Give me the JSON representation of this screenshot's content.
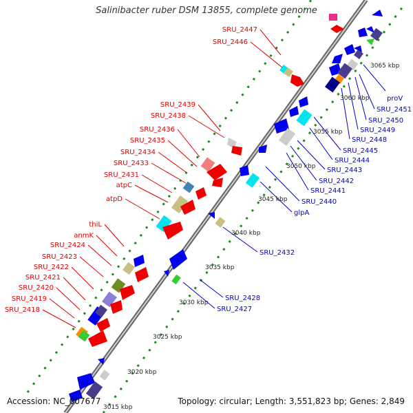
{
  "title": "Salinibacter ruber DSM 13855, complete genome",
  "accession": "Accession: NC_007677",
  "topology": "Topology: circular; Length: 3,551,823 bp; Genes: 2,849",
  "scale": {
    "unit": "kbp",
    "ticks": [
      "3015 kbp",
      "3020 kbp",
      "3025 kbp",
      "3030 kbp",
      "3035 kbp",
      "3040 kbp",
      "3045 kbp",
      "3050 kbp",
      "3055 kbp",
      "3060 kbp",
      "3065 kbp"
    ]
  },
  "labels_minus_strand": [
    "SRU_2447",
    "SRU_2446",
    "SRU_2439",
    "SRU_2438",
    "SRU_2436",
    "SRU_2435",
    "SRU_2434",
    "SRU_2433",
    "SRU_2431",
    "atpC",
    "atpD",
    "thiL",
    "anmK",
    "SRU_2424",
    "SRU_2423",
    "SRU_2422",
    "SRU_2421",
    "SRU_2420",
    "SRU_2419",
    "SRU_2418"
  ],
  "labels_plus_strand": [
    "proV",
    "SRU_2451",
    "SRU_2450",
    "SRU_2449",
    "SRU_2448",
    "SRU_2445",
    "SRU_2444",
    "SRU_2443",
    "SRU_2442",
    "SRU_2441",
    "SRU_2440",
    "glpA",
    "SRU_2432",
    "SRU_2428",
    "SRU_2427"
  ],
  "colors": {
    "minus_strand_label": "#dd0000",
    "plus_strand_label": "#0000cc",
    "backbone": "#888888"
  }
}
